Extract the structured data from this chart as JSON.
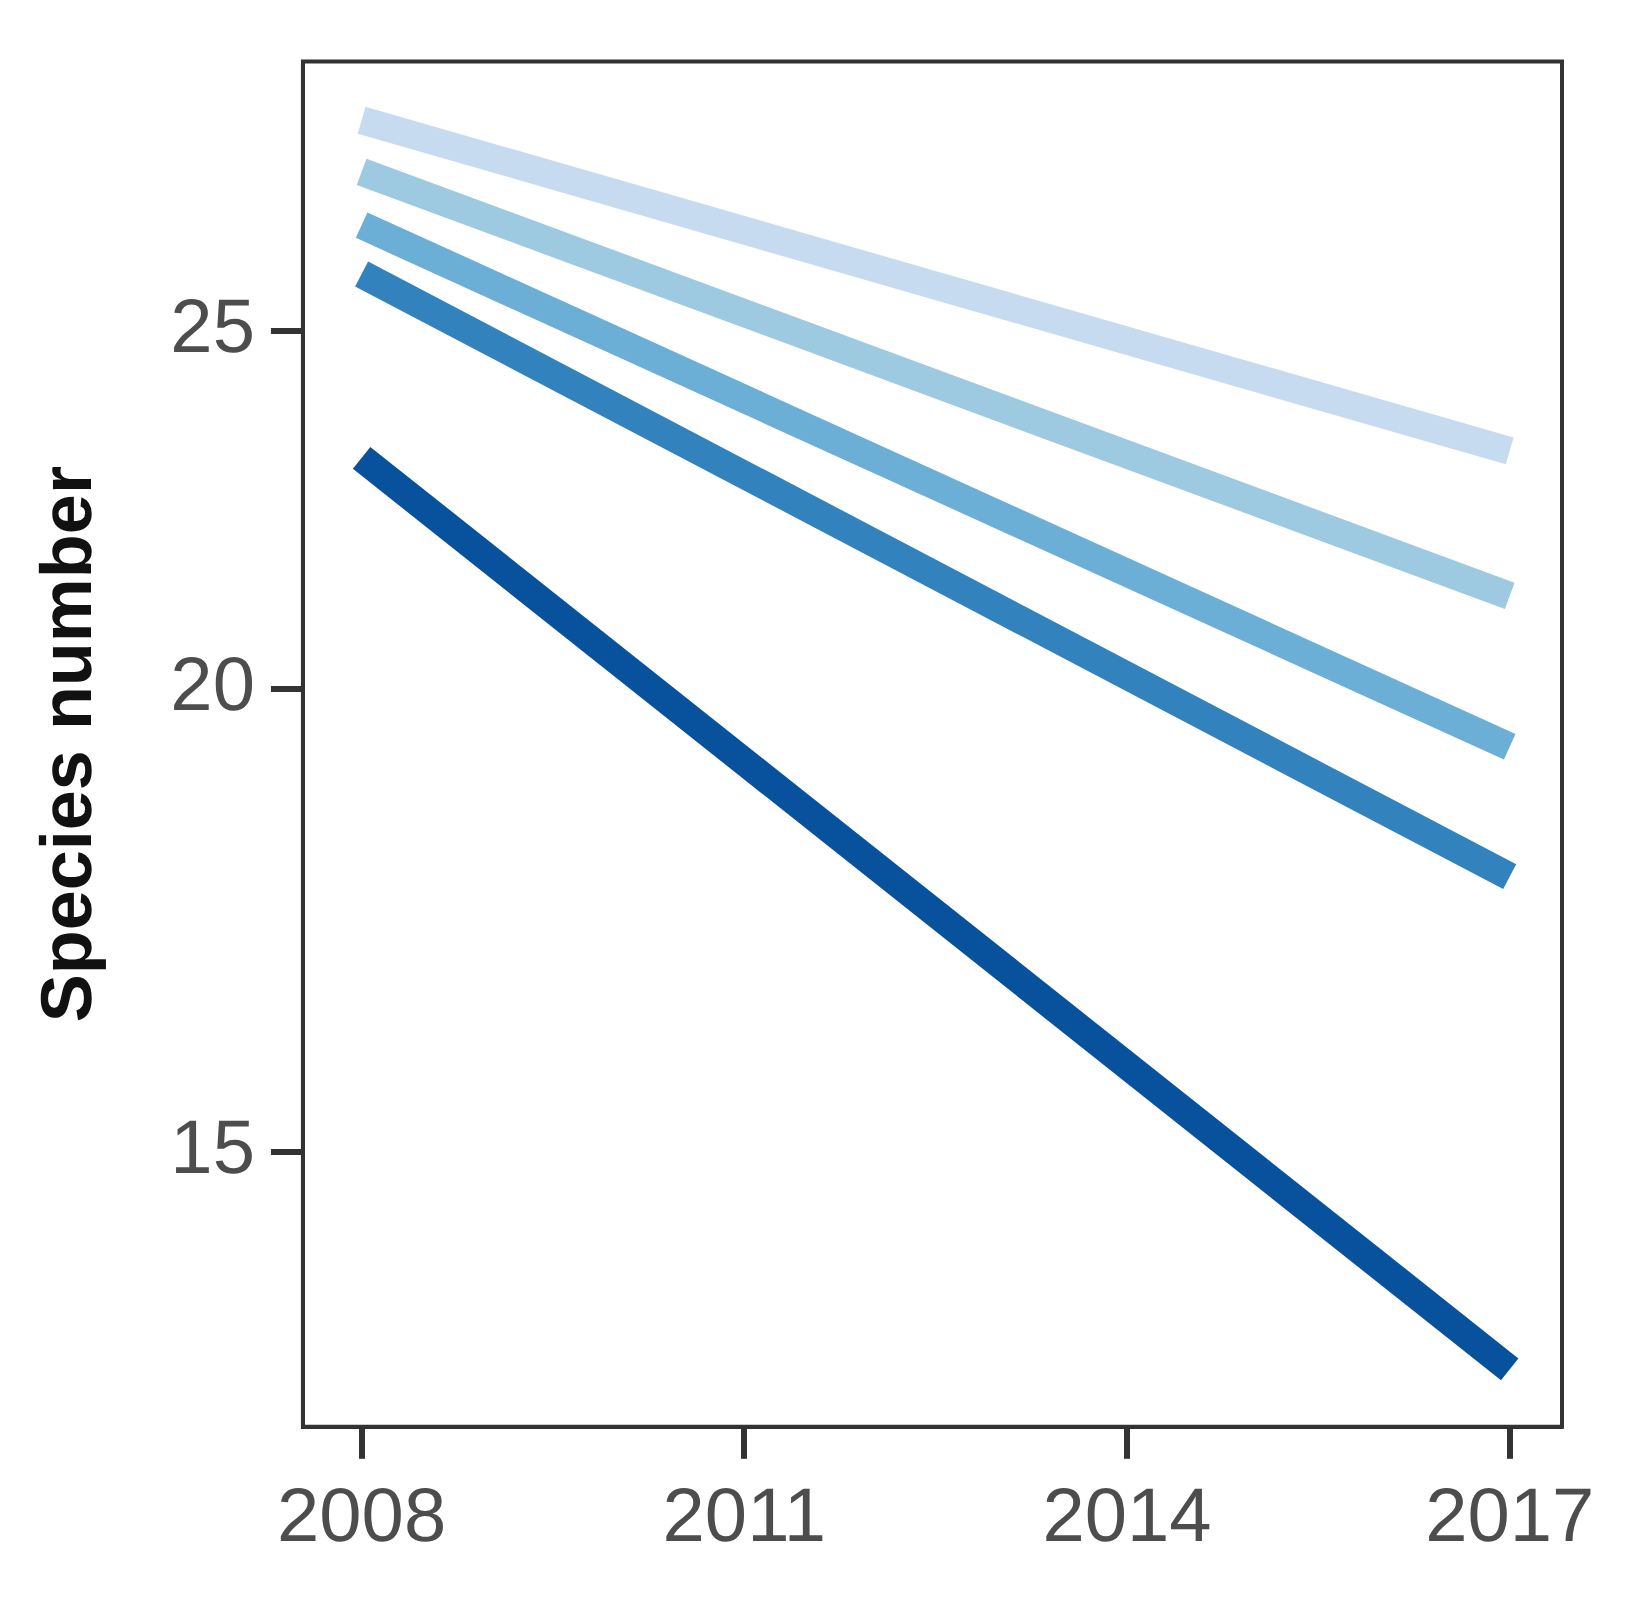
{
  "chart_data": {
    "type": "line",
    "ylabel": "Species number",
    "x": [
      2008,
      2017
    ],
    "series": [
      {
        "color": "#08519c",
        "values": [
          23.1,
          13.1
        ]
      },
      {
        "color": "#3182bd",
        "values": [
          25.9,
          17.8
        ]
      },
      {
        "color": "#6baed6",
        "values": [
          26.7,
          19.3
        ]
      },
      {
        "color": "#9ecae1",
        "values": [
          27.6,
          21.2
        ]
      },
      {
        "color": "#c6dbef",
        "values": [
          28.5,
          23.2
        ]
      }
    ],
    "xlim": [
      2007.54,
      2017.41
    ],
    "ylim": [
      12.64,
      29.56
    ],
    "xticks": [
      2008,
      2011,
      2014,
      2017
    ],
    "yticks": [
      15,
      20,
      25
    ],
    "log": "y",
    "grid": false,
    "legend": false,
    "marker": "none",
    "line_style": "solid"
  }
}
